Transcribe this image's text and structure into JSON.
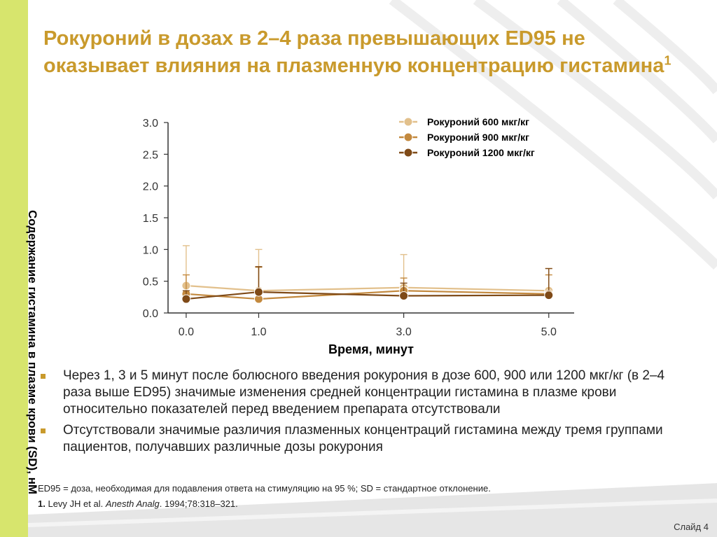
{
  "slide": {
    "title": "Рокуроний в дозах в 2–4 раза превышающих ED95 не оказывает влияния на плазменную концентрацию гистамина",
    "title_ref": "1",
    "bullets": [
      "Через 1, 3 и 5 минут после болюсного введения рокурония в дозе 600, 900 или 1200 мкг/кг (в 2–4 раза выше ED95) значимые изменения средней концентрации гистамина в плазме крови относительно показателей перед введением препарата отсутствовали",
      "Отсутствовали значимые различия плазменных концентраций гистамина между тремя группами пациентов, получавших различные дозы рокурония"
    ],
    "footnote": "ED95 = доза, необходимая для подавления ответа на стимуляцию на 95 %; SD = стандартное отклонение.",
    "reference": {
      "num": "1.",
      "authors": "Levy JH et al.",
      "journal": "Anesth Analg",
      "details": ". 1994;78:318–321."
    },
    "slide_number": "Слайд 4",
    "colors": {
      "accent": "#c99a2c",
      "side_band": "#d7e56d"
    }
  },
  "chart_data": {
    "type": "line",
    "ylabel": "Содержание гистамина в плазме крови (SD), нМ",
    "xlabel": "Время, минут",
    "x": [
      0.0,
      1.0,
      3.0,
      5.0
    ],
    "x_ticks": [
      "0.0",
      "1.0",
      "3.0",
      "5.0"
    ],
    "y_ticks": [
      "0.0",
      "0.5",
      "1.0",
      "1.5",
      "2.0",
      "2.5",
      "3.0"
    ],
    "ylim": [
      0,
      3.0
    ],
    "legend_position": "top-right",
    "series": [
      {
        "name": "Рокуроний 600 мкг/кг",
        "color": "#e2c08c",
        "values": [
          0.43,
          0.35,
          0.4,
          0.35
        ],
        "err": [
          0.63,
          0.65,
          0.52,
          0.35
        ]
      },
      {
        "name": "Рокуроний 900 мкг/кг",
        "color": "#c3893e",
        "values": [
          0.3,
          0.22,
          0.35,
          0.3
        ],
        "err": [
          0.3,
          0.5,
          0.2,
          0.3
        ]
      },
      {
        "name": "Рокуроний 1200 мкг/кг",
        "color": "#7f4a17",
        "values": [
          0.22,
          0.33,
          0.27,
          0.28
        ],
        "err": [
          0.13,
          0.4,
          0.2,
          0.42
        ]
      }
    ]
  }
}
